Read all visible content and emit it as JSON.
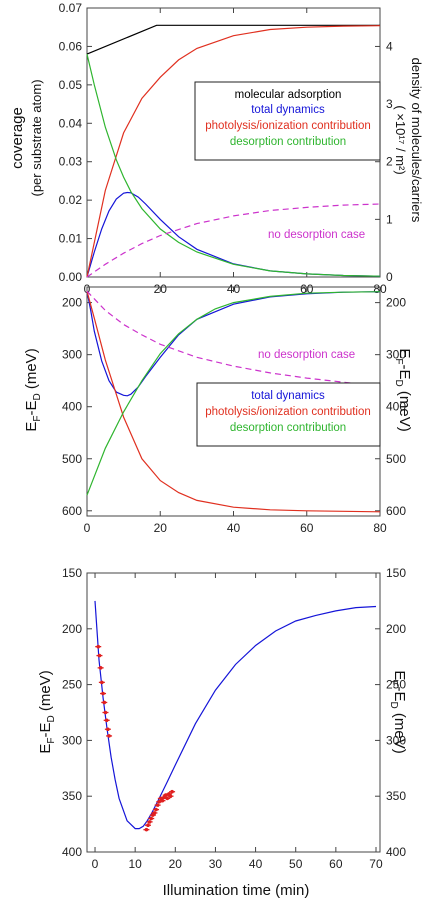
{
  "chart_data": [
    {
      "type": "line",
      "xlim": [
        0,
        80
      ],
      "ylim": [
        0,
        0.07
      ],
      "y2lim": [
        0,
        4.667
      ],
      "x_ticks": [
        "0",
        "20",
        "40",
        "60",
        "80"
      ],
      "y_ticks": [
        "0.00",
        "0.01",
        "0.02",
        "0.03",
        "0.04",
        "0.05",
        "0.06",
        "0.07"
      ],
      "y2_ticks": [
        "0",
        "1",
        "2",
        "3",
        "4"
      ],
      "ylabel_line1": "coverage",
      "ylabel_line2": "(per substrate atom)",
      "y2label_line1": "density of molecules/carriers",
      "y2label_line2": "( ×10¹⁷ / m²)",
      "legend_position": "center-right",
      "legend": [
        {
          "label": "molecular adsorption",
          "color": "#000000"
        },
        {
          "label": "total dynamics",
          "color": "#1515d8"
        },
        {
          "label": "photolysis/ionization contribution",
          "color": "#e03020"
        },
        {
          "label": "desorption contribution",
          "color": "#2fb52f"
        }
      ],
      "annotation": {
        "text": "no desorption case",
        "color": "#cc33cc"
      },
      "series": [
        {
          "name": "molecular adsorption",
          "color": "#000000",
          "x": [
            0,
            19,
            80
          ],
          "y": [
            0.058,
            0.0655,
            0.0655
          ]
        },
        {
          "name": "total dynamics",
          "color": "#1515d8",
          "x": [
            0,
            2,
            4,
            6,
            8,
            10,
            11,
            12,
            14,
            16,
            20,
            25,
            30,
            40,
            50,
            60,
            70,
            80
          ],
          "y": [
            0,
            0.0065,
            0.0125,
            0.0172,
            0.0203,
            0.0218,
            0.022,
            0.0219,
            0.0208,
            0.019,
            0.015,
            0.0105,
            0.0072,
            0.0034,
            0.0016,
            0.0008,
            0.0004,
            0.0002
          ]
        },
        {
          "name": "photolysis/ionization contribution",
          "color": "#e03020",
          "x": [
            0,
            5,
            10,
            15,
            20,
            25,
            30,
            40,
            50,
            60,
            70,
            80
          ],
          "y": [
            0,
            0.0225,
            0.0375,
            0.0465,
            0.052,
            0.0565,
            0.0595,
            0.0628,
            0.0644,
            0.065,
            0.0653,
            0.0654
          ]
        },
        {
          "name": "desorption contribution",
          "color": "#2fb52f",
          "x": [
            0,
            2,
            5,
            8,
            10,
            12,
            15,
            20,
            25,
            30,
            40,
            50,
            60,
            70,
            80
          ],
          "y": [
            0.058,
            0.05,
            0.039,
            0.0305,
            0.026,
            0.0222,
            0.0178,
            0.0125,
            0.009,
            0.0065,
            0.0033,
            0.0016,
            0.0008,
            0.0004,
            0.0002
          ]
        },
        {
          "name": "no desorption case",
          "color": "#cc33cc",
          "dashed": true,
          "x": [
            0,
            5,
            10,
            15,
            20,
            30,
            40,
            50,
            60,
            70,
            80
          ],
          "y": [
            0,
            0.0033,
            0.0062,
            0.0087,
            0.0108,
            0.0139,
            0.0159,
            0.0173,
            0.0181,
            0.0187,
            0.019
          ]
        }
      ]
    },
    {
      "type": "line",
      "xlim": [
        0,
        80
      ],
      "ylim": [
        610,
        170
      ],
      "x_ticks": [
        "0",
        "20",
        "40",
        "60",
        "80"
      ],
      "y_ticks": [
        "200",
        "300",
        "400",
        "500",
        "600"
      ],
      "y2_ticks": [
        "200",
        "300",
        "400",
        "500",
        "600"
      ],
      "ylabel": "E_F-E_D (meV)",
      "y2label": "E_F-E_D (meV)",
      "legend_position": "bottom-right",
      "legend": [
        {
          "label": "total dynamics",
          "color": "#1515d8"
        },
        {
          "label": "photolysis/ionization contribution",
          "color": "#e03020"
        },
        {
          "label": "desorption contribution",
          "color": "#2fb52f"
        }
      ],
      "annotation": {
        "text": "no desorption case",
        "color": "#cc33cc"
      },
      "series": [
        {
          "name": "total dynamics",
          "color": "#1515d8",
          "x": [
            0,
            1,
            2,
            4,
            6,
            8,
            10,
            11,
            12,
            14,
            16,
            20,
            25,
            30,
            40,
            50,
            60,
            70,
            80
          ],
          "y": [
            178,
            215,
            255,
            312,
            350,
            372,
            378,
            379,
            376,
            362,
            342,
            305,
            262,
            232,
            203,
            189,
            183,
            180,
            179
          ]
        },
        {
          "name": "photolysis/ionization contribution",
          "color": "#e03020",
          "x": [
            0,
            2,
            5,
            10,
            15,
            20,
            25,
            30,
            40,
            50,
            60,
            70,
            80
          ],
          "y": [
            178,
            230,
            310,
            420,
            500,
            542,
            565,
            580,
            593,
            598,
            600,
            601,
            602
          ]
        },
        {
          "name": "desorption contribution",
          "color": "#2fb52f",
          "x": [
            0,
            5,
            10,
            15,
            20,
            25,
            30,
            35,
            40,
            50,
            60,
            70,
            80
          ],
          "y": [
            570,
            480,
            410,
            350,
            298,
            260,
            232,
            212,
            200,
            188,
            182,
            180,
            179
          ]
        },
        {
          "name": "no desorption case",
          "color": "#cc33cc",
          "dashed": true,
          "x": [
            0,
            5,
            10,
            15,
            20,
            30,
            40,
            50,
            60,
            70,
            80
          ],
          "y": [
            178,
            215,
            242,
            262,
            280,
            305,
            322,
            335,
            345,
            353,
            360
          ]
        }
      ]
    },
    {
      "type": "line",
      "xlim": [
        -2,
        71
      ],
      "ylim": [
        400,
        150
      ],
      "x_ticks": [
        "0",
        "10",
        "20",
        "30",
        "40",
        "50",
        "60",
        "70"
      ],
      "y_ticks": [
        "150",
        "200",
        "250",
        "300",
        "350",
        "400"
      ],
      "y2_ticks": [
        "150",
        "200",
        "250",
        "300",
        "350",
        "400"
      ],
      "xlabel": "Illumination time (min)",
      "ylabel": "E_F-E_D (meV)",
      "y2label": "E_F-E_D (meV)",
      "series": [
        {
          "name": "fit",
          "color": "#1515d8",
          "x": [
            0,
            1,
            2,
            3,
            4,
            5,
            6,
            8,
            10,
            11,
            12,
            13,
            14,
            16,
            18,
            20,
            25,
            30,
            35,
            40,
            45,
            50,
            55,
            60,
            65,
            70
          ],
          "y": [
            175,
            228,
            262,
            290,
            315,
            335,
            352,
            372,
            379,
            379,
            377,
            372,
            366,
            352,
            337,
            322,
            285,
            255,
            232,
            215,
            202,
            193,
            188,
            184,
            181,
            180
          ]
        },
        {
          "name": "data",
          "color": "#e02020",
          "markers": true,
          "x": [
            0.8,
            1.1,
            1.4,
            1.7,
            2.0,
            2.3,
            2.6,
            2.9,
            3.2,
            3.5,
            12.8,
            13.2,
            13.6,
            14.0,
            14.4,
            14.8,
            15.2,
            15.6,
            16.0,
            16.4,
            16.8,
            17.2,
            17.6,
            18.0,
            18.4,
            18.8,
            19.2
          ],
          "y": [
            216,
            224,
            235,
            248,
            258,
            266,
            275,
            282,
            290,
            296,
            380,
            376,
            373,
            370,
            367,
            365,
            362,
            358,
            355,
            352,
            354,
            351,
            349,
            352,
            348,
            350,
            346
          ]
        }
      ]
    }
  ]
}
